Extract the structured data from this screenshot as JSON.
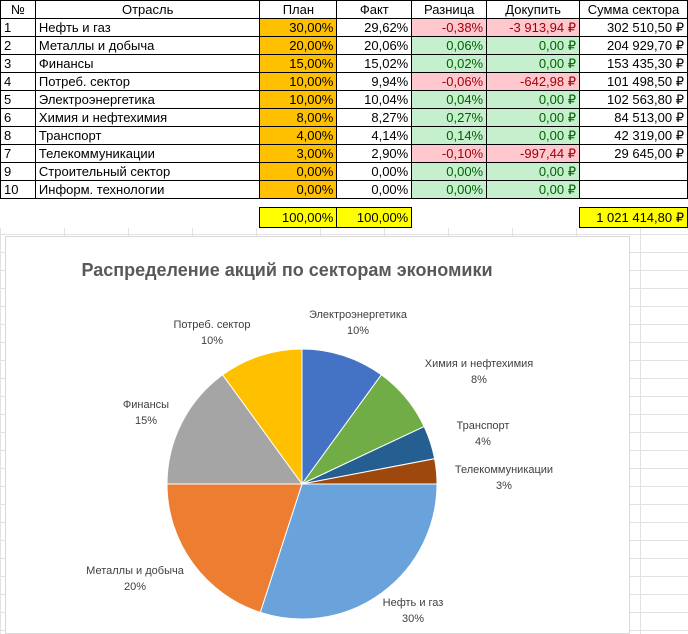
{
  "table": {
    "header": [
      "№",
      "Отрасль",
      "План",
      "Факт",
      "Разница",
      "Докупить",
      "Сумма сектора"
    ],
    "rows": [
      [
        "1",
        "Нефть и газ",
        "30,00%",
        "29,62%",
        "-0,38%",
        "-3 913,94 ₽",
        "302 510,50 ₽"
      ],
      [
        "2",
        "Металлы и добыча",
        "20,00%",
        "20,06%",
        "0,06%",
        "0,00 ₽",
        "204 929,70 ₽"
      ],
      [
        "3",
        "Финансы",
        "15,00%",
        "15,02%",
        "0,02%",
        "0,00 ₽",
        "153 435,30 ₽"
      ],
      [
        "4",
        "Потреб. сектор",
        "10,00%",
        "9,94%",
        "-0,06%",
        "-642,98 ₽",
        "101 498,50 ₽"
      ],
      [
        "5",
        "Электроэнергетика",
        "10,00%",
        "10,04%",
        "0,04%",
        "0,00 ₽",
        "102 563,80 ₽"
      ],
      [
        "6",
        "Химия и нефтехимия",
        "8,00%",
        "8,27%",
        "0,27%",
        "0,00 ₽",
        "84 513,00 ₽"
      ],
      [
        "8",
        "Транспорт",
        "4,00%",
        "4,14%",
        "0,14%",
        "0,00 ₽",
        "42 319,00 ₽"
      ],
      [
        "7",
        "Телекоммуникации",
        "3,00%",
        "2,90%",
        "-0,10%",
        "-997,44 ₽",
        "29 645,00 ₽"
      ],
      [
        "9",
        "Строительный сектор",
        "0,00%",
        "0,00%",
        "0,00%",
        "0,00 ₽"
      ],
      [
        "10",
        "Информ. технологии",
        "0,00%",
        "0,00%",
        "0,00%",
        "0,00 ₽"
      ]
    ],
    "total": {
      "plan": "100,00%",
      "fact": "100,00%",
      "sum": "1 021 414,80 ₽"
    }
  },
  "chart_data": {
    "type": "pie",
    "title": "Распределение акций по секторам экономики",
    "categories": [
      "Нефть и газ",
      "Металлы и добыча",
      "Финансы",
      "Потреб. сектор",
      "Электроэнергетика",
      "Химия и нефтехимия",
      "Транспорт",
      "Телекоммуникации"
    ],
    "values": [
      30,
      20,
      15,
      10,
      10,
      8,
      4,
      3
    ],
    "value_labels": [
      "30%",
      "20%",
      "15%",
      "10%",
      "10%",
      "8%",
      "4%",
      "3%"
    ],
    "colors": [
      "#6aa3dc",
      "#ed7d31",
      "#a5a5a5",
      "#ffc000",
      "#4472c4",
      "#70ad47",
      "#255e91",
      "#9e480e"
    ]
  }
}
